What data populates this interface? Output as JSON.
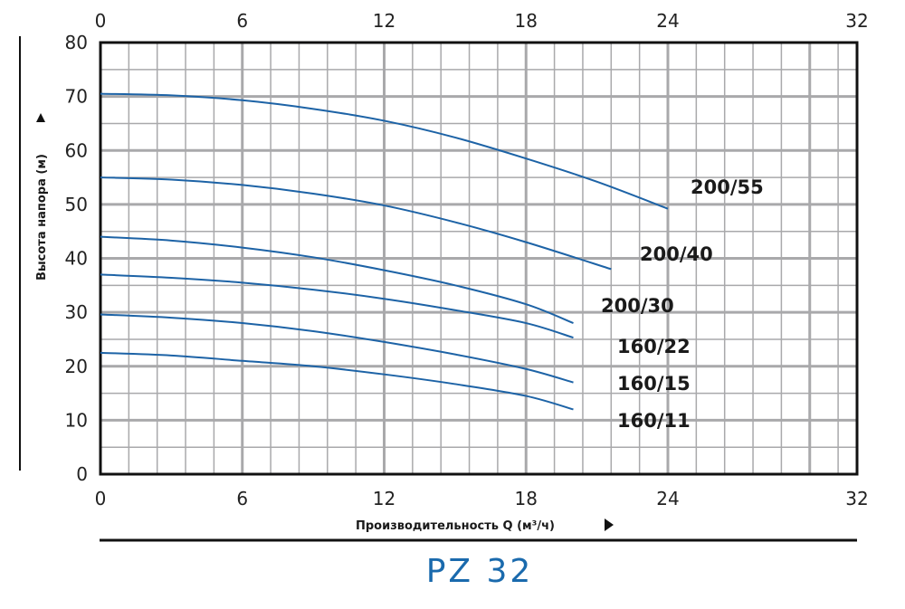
{
  "chart_data": {
    "type": "line",
    "title": "PZ 32",
    "xlabel": "Производительность Q (м³/ч)",
    "ylabel": "Высота напора (м)",
    "xlim": [
      0,
      32
    ],
    "ylim": [
      0,
      80
    ],
    "xticks": [
      0,
      6,
      12,
      18,
      24,
      32
    ],
    "yticks": [
      0,
      10,
      20,
      30,
      40,
      50,
      60,
      70,
      80
    ],
    "grid": true,
    "line_color": "#1d63a6",
    "title_color": "#1a6aad",
    "series": [
      {
        "name": "200/55",
        "x": [
          0,
          3,
          6,
          9,
          12,
          15,
          18,
          21,
          24
        ],
        "y": [
          70.5,
          70.2,
          69.3,
          67.7,
          65.5,
          62.4,
          58.5,
          54.2,
          49.2
        ]
      },
      {
        "name": "200/40",
        "x": [
          0,
          3,
          6,
          9,
          12,
          15,
          18,
          21.6
        ],
        "y": [
          55,
          54.6,
          53.6,
          52,
          49.8,
          46.7,
          43,
          38
        ]
      },
      {
        "name": "200/30",
        "x": [
          0,
          3,
          6,
          9,
          12,
          15,
          18,
          20
        ],
        "y": [
          44,
          43.3,
          42,
          40.2,
          37.8,
          35,
          31.5,
          28
        ]
      },
      {
        "name": "160/22",
        "x": [
          0,
          3,
          6,
          9,
          12,
          15,
          18,
          20
        ],
        "y": [
          37,
          36.4,
          35.5,
          34.2,
          32.5,
          30.4,
          28,
          25.3
        ]
      },
      {
        "name": "160/15",
        "x": [
          0,
          3,
          6,
          9,
          12,
          15,
          18,
          20
        ],
        "y": [
          29.6,
          29,
          28,
          26.5,
          24.5,
          22.2,
          19.5,
          17
        ]
      },
      {
        "name": "160/11",
        "x": [
          0,
          3,
          6,
          9,
          12,
          15,
          18,
          20
        ],
        "y": [
          22.5,
          22,
          21,
          20,
          18.5,
          16.7,
          14.5,
          12
        ]
      }
    ]
  }
}
